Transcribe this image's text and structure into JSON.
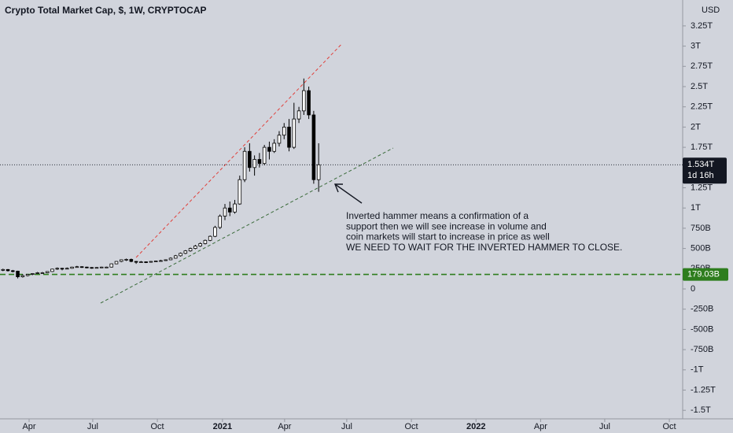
{
  "chart_data": {
    "type": "candlestick",
    "title": "Crypto Total Market Cap, $, 1W, CRYPTOCAP",
    "currency": "USD",
    "x": [
      0.6,
      1.6,
      2.6,
      3.6,
      4.6,
      5.6,
      6.6,
      7.6,
      8.6,
      9.6,
      10.6,
      11.6,
      12.6,
      13.6,
      14.6,
      15.6,
      16.6,
      17.6,
      18.6,
      19.6,
      20.6,
      21.6,
      22.6,
      23.6,
      24.6,
      25.6,
      26.6,
      27.6,
      28.6,
      29.6,
      30.6,
      31.6,
      32.6,
      33.6,
      34.6,
      35.6,
      36.6,
      37.6,
      38.6,
      39.6,
      40.6,
      41.6,
      42.6,
      43.6,
      44.6,
      45.6,
      46.6,
      47.6,
      48.6,
      49.6,
      50.6,
      51.6,
      52.6,
      53.6,
      54.6,
      55.6,
      56.6,
      57.6,
      58.6,
      59.6,
      60.6,
      61.6,
      62.6,
      63.6,
      64.6
    ],
    "open": [
      230,
      240,
      225,
      220,
      150,
      165,
      180,
      190,
      200,
      200,
      215,
      245,
      255,
      250,
      255,
      270,
      275,
      270,
      265,
      260,
      265,
      270,
      270,
      310,
      340,
      360,
      365,
      340,
      330,
      335,
      330,
      340,
      345,
      350,
      360,
      380,
      410,
      440,
      470,
      500,
      530,
      560,
      600,
      650,
      760,
      900,
      1000,
      950,
      1050,
      1350,
      1700,
      1500,
      1600,
      1550,
      1750,
      1700,
      1800,
      1900,
      2000,
      1750,
      2100,
      2200,
      2450,
      2150,
      1350
    ],
    "high": [
      250,
      245,
      235,
      225,
      180,
      185,
      195,
      210,
      210,
      220,
      250,
      265,
      260,
      265,
      275,
      285,
      280,
      275,
      270,
      270,
      275,
      275,
      315,
      345,
      365,
      375,
      375,
      345,
      345,
      340,
      345,
      350,
      360,
      365,
      390,
      420,
      450,
      480,
      510,
      545,
      575,
      610,
      660,
      780,
      920,
      1050,
      1080,
      1100,
      1400,
      1750,
      1800,
      1650,
      1680,
      1780,
      1820,
      1850,
      1950,
      2050,
      2100,
      2300,
      2250,
      2600,
      2500,
      2200,
      1800
    ],
    "low": [
      220,
      215,
      205,
      130,
      140,
      155,
      170,
      185,
      190,
      195,
      210,
      235,
      230,
      245,
      250,
      265,
      260,
      255,
      250,
      255,
      260,
      265,
      265,
      305,
      330,
      345,
      330,
      310,
      325,
      320,
      325,
      335,
      340,
      345,
      355,
      375,
      400,
      430,
      460,
      490,
      520,
      550,
      590,
      640,
      740,
      850,
      900,
      930,
      1040,
      1320,
      1450,
      1400,
      1500,
      1530,
      1600,
      1680,
      1760,
      1850,
      1700,
      1730,
      2050,
      2150,
      2100,
      1300,
      1200
    ],
    "close": [
      240,
      225,
      220,
      150,
      165,
      180,
      190,
      200,
      200,
      215,
      245,
      255,
      250,
      255,
      270,
      275,
      270,
      265,
      260,
      265,
      270,
      270,
      310,
      340,
      360,
      365,
      340,
      330,
      335,
      330,
      340,
      345,
      350,
      360,
      380,
      410,
      440,
      470,
      500,
      530,
      560,
      600,
      650,
      760,
      900,
      1000,
      950,
      1050,
      1350,
      1700,
      1500,
      1600,
      1550,
      1750,
      1700,
      1800,
      1900,
      2000,
      1750,
      2100,
      2200,
      2450,
      2150,
      1350,
      1534
    ],
    "up_color": "#ffffff",
    "down_color": "#000000",
    "xlim": [
      0,
      138.4
    ],
    "xticks": [
      {
        "value": 5.9,
        "label": "Apr"
      },
      {
        "value": 18.8,
        "label": "Jul"
      },
      {
        "value": 31.9,
        "label": "Oct"
      },
      {
        "value": 45.1,
        "label": "2021"
      },
      {
        "value": 57.7,
        "label": "Apr"
      },
      {
        "value": 70.3,
        "label": "Jul"
      },
      {
        "value": 83.4,
        "label": "Oct"
      },
      {
        "value": 96.5,
        "label": "2022"
      },
      {
        "value": 109.6,
        "label": "Apr"
      },
      {
        "value": 122.6,
        "label": "Jul"
      },
      {
        "value": 135.7,
        "label": "Oct"
      }
    ],
    "ylim": [
      -1605,
      3570
    ],
    "yticks": [
      {
        "value": 3250,
        "label": "3.25T"
      },
      {
        "value": 3000,
        "label": "3T"
      },
      {
        "value": 2750,
        "label": "2.75T"
      },
      {
        "value": 2500,
        "label": "2.5T"
      },
      {
        "value": 2250,
        "label": "2.25T"
      },
      {
        "value": 2000,
        "label": "2T"
      },
      {
        "value": 1750,
        "label": "1.75T"
      },
      {
        "value": 1500,
        "label": "1.5T"
      },
      {
        "value": 1250,
        "label": "1.25T"
      },
      {
        "value": 1000,
        "label": "1T"
      },
      {
        "value": 750,
        "label": "750B"
      },
      {
        "value": 500,
        "label": "500B"
      },
      {
        "value": 250,
        "label": "250B"
      },
      0,
      {
        "value": -250,
        "label": "-250B"
      },
      {
        "value": -500,
        "label": "-500B"
      },
      {
        "value": -750,
        "label": "-750B"
      },
      {
        "value": -1000,
        "label": "-1T"
      },
      {
        "value": -1250,
        "label": "-1.25T"
      },
      {
        "value": -1500,
        "label": "-1.5T"
      }
    ],
    "price_line": {
      "value": 1534,
      "label": "1.534T",
      "countdown": "1d 16h"
    },
    "support_line": {
      "value": 179.03,
      "label": "179.03B",
      "color": "#2e7d1e"
    },
    "trendlines": [
      {
        "points": [
          [
            27.6,
            389
          ],
          [
            69.4,
            3035
          ]
        ],
        "color": "#e0413c"
      },
      {
        "points": [
          [
            20.4,
            -175
          ],
          [
            79.7,
            1741
          ]
        ],
        "color": "#3a6b3a"
      }
    ],
    "annotation": [
      "Inverted hammer means a confirmation of a",
      "support then we will see increase in volume and",
      "coin markets will start to increase in price  as well",
      "WE NEED TO WAIT FOR THE INVERTED HAMMER TO CLOSE."
    ]
  }
}
